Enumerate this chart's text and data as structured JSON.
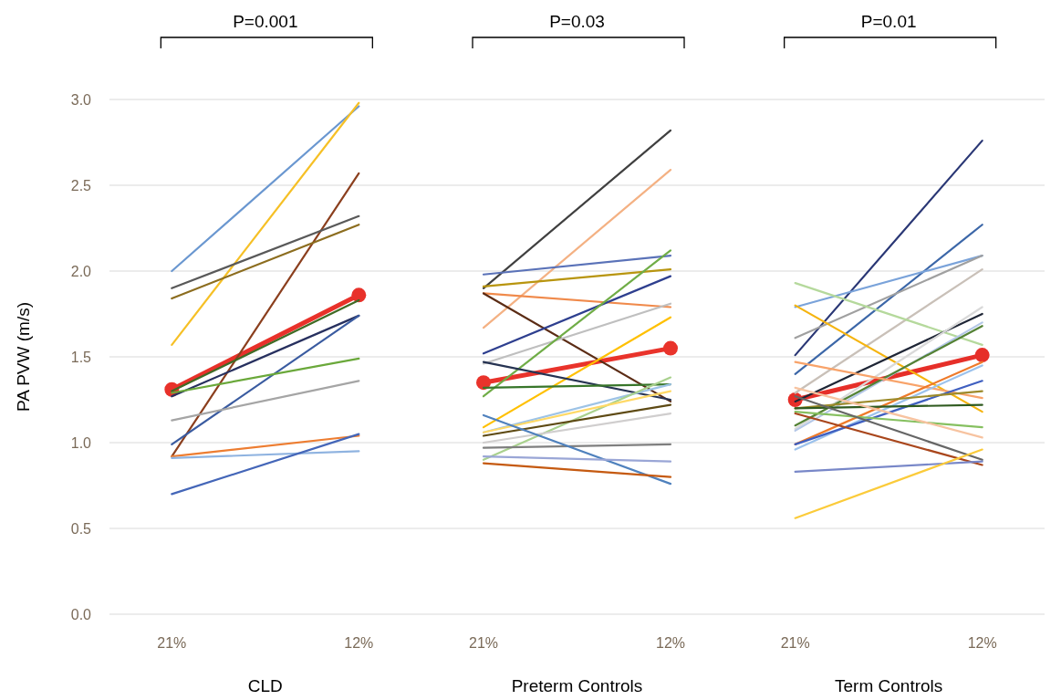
{
  "chart_data": {
    "type": "line",
    "ylabel": "PA PVW (m/s)",
    "categories": [
      "21%",
      "12%",
      "21%",
      "12%",
      "21%",
      "12%"
    ],
    "ylim": [
      0,
      3
    ],
    "yticks": [
      {
        "value": 0,
        "label": "0.0"
      },
      0.5,
      {
        "value": 1,
        "label": "1.0"
      },
      1.5,
      {
        "value": 2,
        "label": "2.0"
      },
      2.5,
      {
        "value": 3,
        "label": "3.0"
      }
    ],
    "grid": "y",
    "marker": "none",
    "annotations": [
      "P=0.001",
      "P=0.03",
      "P=0.01",
      "CLD",
      "Preterm Controls",
      "Term Controls"
    ],
    "series": [
      {
        "color": "#6a97d0",
        "values": [
          2.0,
          2.96,
          null,
          null,
          null,
          null
        ]
      },
      {
        "color": "#f6c026",
        "values": [
          1.57,
          2.98,
          null,
          null,
          null,
          null
        ]
      },
      {
        "color": "#8b3f1e",
        "values": [
          0.92,
          2.57,
          null,
          null,
          null,
          null
        ]
      },
      {
        "color": "#595959",
        "values": [
          1.9,
          2.32,
          null,
          null,
          null,
          null
        ]
      },
      {
        "color": "#8c6d1f",
        "values": [
          1.84,
          2.27,
          null,
          null,
          null,
          null
        ]
      },
      {
        "color": "#3f6b25",
        "values": [
          1.3,
          1.83,
          null,
          null,
          null,
          null
        ]
      },
      {
        "color": "#27305f",
        "values": [
          1.27,
          1.74,
          null,
          null,
          null,
          null
        ]
      },
      {
        "color": "#3a5ba0",
        "values": [
          0.99,
          1.74,
          null,
          null,
          null,
          null
        ]
      },
      {
        "color": "#6aa83a",
        "values": [
          1.29,
          1.49,
          null,
          null,
          null,
          null
        ]
      },
      {
        "color": "#a5a5a5",
        "values": [
          1.13,
          1.36,
          null,
          null,
          null,
          null
        ]
      },
      {
        "color": "#ed7d31",
        "values": [
          0.92,
          1.04,
          null,
          null,
          null,
          null
        ]
      },
      {
        "color": "#8fb3e0",
        "values": [
          0.91,
          0.95,
          null,
          null,
          null,
          null
        ]
      },
      {
        "color": "#4466b8",
        "values": [
          0.7,
          1.05,
          null,
          null,
          null,
          null
        ]
      },
      {
        "color": "#404040",
        "values": [
          null,
          null,
          1.9,
          2.82,
          null,
          null
        ]
      },
      {
        "color": "#f4b183",
        "values": [
          null,
          null,
          1.67,
          2.59,
          null,
          null
        ]
      },
      {
        "color": "#5a72b8",
        "values": [
          null,
          null,
          1.98,
          2.09,
          null,
          null
        ]
      },
      {
        "color": "#b8950f",
        "values": [
          null,
          null,
          1.91,
          2.01,
          null,
          null
        ]
      },
      {
        "color": "#f08a4b",
        "values": [
          null,
          null,
          1.87,
          1.79,
          null,
          null
        ]
      },
      {
        "color": "#5b2c15",
        "values": [
          null,
          null,
          1.87,
          1.24,
          null,
          null
        ]
      },
      {
        "color": "#2e3f8f",
        "values": [
          null,
          null,
          1.52,
          1.97,
          null,
          null
        ]
      },
      {
        "color": "#bfbfbf",
        "values": [
          null,
          null,
          1.46,
          1.81,
          null,
          null
        ]
      },
      {
        "color": "#70ad47",
        "values": [
          null,
          null,
          1.27,
          2.12,
          null,
          null
        ]
      },
      {
        "color": "#ffc000",
        "values": [
          null,
          null,
          1.09,
          1.73,
          null,
          null
        ]
      },
      {
        "color": "#263352",
        "values": [
          null,
          null,
          1.47,
          1.25,
          null,
          null
        ]
      },
      {
        "color": "#38762a",
        "values": [
          null,
          null,
          1.32,
          1.34,
          null,
          null
        ]
      },
      {
        "color": "#9dc3e6",
        "values": [
          null,
          null,
          1.06,
          1.34,
          null,
          null
        ]
      },
      {
        "color": "#a9d18e",
        "values": [
          null,
          null,
          0.9,
          1.38,
          null,
          null
        ]
      },
      {
        "color": "#ffd966",
        "values": [
          null,
          null,
          1.06,
          1.3,
          null,
          null
        ]
      },
      {
        "color": "#5e4a14",
        "values": [
          null,
          null,
          1.04,
          1.22,
          null,
          null
        ]
      },
      {
        "color": "#d0cece",
        "values": [
          null,
          null,
          1.0,
          1.17,
          null,
          null
        ]
      },
      {
        "color": "#7f7f7f",
        "values": [
          null,
          null,
          0.97,
          0.99,
          null,
          null
        ]
      },
      {
        "color": "#4f81bd",
        "values": [
          null,
          null,
          1.16,
          0.76,
          null,
          null
        ]
      },
      {
        "color": "#9aa6d6",
        "values": [
          null,
          null,
          0.92,
          0.89,
          null,
          null
        ]
      },
      {
        "color": "#c55a11",
        "values": [
          null,
          null,
          0.88,
          0.8,
          null,
          null
        ]
      },
      {
        "color": "#2a3775",
        "values": [
          null,
          null,
          null,
          null,
          1.51,
          2.76
        ]
      },
      {
        "color": "#3c67a8",
        "values": [
          null,
          null,
          null,
          null,
          1.4,
          2.27
        ]
      },
      {
        "color": "#7aa3da",
        "values": [
          null,
          null,
          null,
          null,
          1.79,
          2.09
        ]
      },
      {
        "color": "#a0a0a0",
        "values": [
          null,
          null,
          null,
          null,
          1.61,
          2.09
        ]
      },
      {
        "color": "#c9c0b8",
        "values": [
          null,
          null,
          null,
          null,
          1.29,
          2.01
        ]
      },
      {
        "color": "#b5d99c",
        "values": [
          null,
          null,
          null,
          null,
          1.93,
          1.57
        ]
      },
      {
        "color": "#f5b40f",
        "values": [
          null,
          null,
          null,
          null,
          1.8,
          1.18
        ]
      },
      {
        "color": "#1f2636",
        "values": [
          null,
          null,
          null,
          null,
          1.24,
          1.75
        ]
      },
      {
        "color": "#d9d9d9",
        "values": [
          null,
          null,
          null,
          null,
          1.08,
          1.79
        ]
      },
      {
        "color": "#b4c7e7",
        "values": [
          null,
          null,
          null,
          null,
          1.07,
          1.7
        ]
      },
      {
        "color": "#548235",
        "values": [
          null,
          null,
          null,
          null,
          1.1,
          1.68
        ]
      },
      {
        "color": "#f8a36a",
        "values": [
          null,
          null,
          null,
          null,
          1.47,
          1.26
        ]
      },
      {
        "color": "#ee7a2a",
        "values": [
          null,
          null,
          null,
          null,
          0.99,
          1.47
        ]
      },
      {
        "color": "#9cc2ec",
        "values": [
          null,
          null,
          null,
          null,
          0.96,
          1.45
        ]
      },
      {
        "color": "#3f5fc0",
        "values": [
          null,
          null,
          null,
          null,
          0.99,
          1.36
        ]
      },
      {
        "color": "#9c8a2a",
        "values": [
          null,
          null,
          null,
          null,
          1.2,
          1.3
        ]
      },
      {
        "color": "#2f5a1f",
        "values": [
          null,
          null,
          null,
          null,
          1.2,
          1.22
        ]
      },
      {
        "color": "#86c060",
        "values": [
          null,
          null,
          null,
          null,
          1.18,
          1.09
        ]
      },
      {
        "color": "#f7c3a0",
        "values": [
          null,
          null,
          null,
          null,
          1.32,
          1.03
        ]
      },
      {
        "color": "#666666",
        "values": [
          null,
          null,
          null,
          null,
          1.27,
          0.9
        ]
      },
      {
        "color": "#a9461c",
        "values": [
          null,
          null,
          null,
          null,
          1.17,
          0.87
        ]
      },
      {
        "color": "#7887c8",
        "values": [
          null,
          null,
          null,
          null,
          0.83,
          0.89
        ]
      },
      {
        "color": "#fbcb3a",
        "values": [
          null,
          null,
          null,
          null,
          0.56,
          0.96
        ]
      },
      {
        "color": "#e8312a",
        "marker": "circle",
        "values": [
          1.31,
          1.86,
          null,
          null,
          null,
          null
        ]
      },
      {
        "color": "#e9332b",
        "marker": "circle",
        "values": [
          null,
          null,
          1.35,
          1.55,
          null,
          null
        ]
      },
      {
        "color": "#e62f29",
        "marker": "circle",
        "values": [
          null,
          null,
          null,
          null,
          1.25,
          1.51
        ]
      }
    ]
  }
}
